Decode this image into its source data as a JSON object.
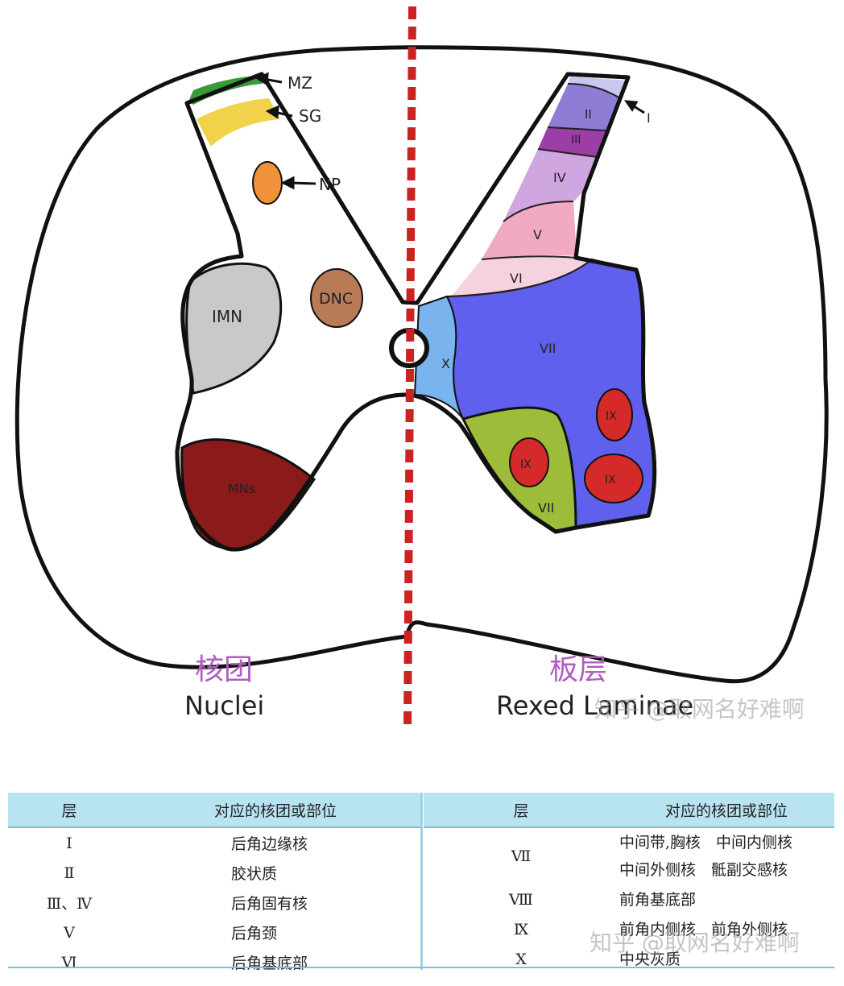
{
  "diagram": {
    "left_labels": {
      "mz": "MZ",
      "sg": "SG",
      "np": "NP",
      "imn": "IMN",
      "dnc": "DNC",
      "mns": "MNs"
    },
    "laminae": {
      "i": "I",
      "ii": "II",
      "iii": "III",
      "iv": "IV",
      "v": "V",
      "vi": "VI",
      "vii": "VII",
      "vii_b": "VII",
      "x": "X",
      "ix_a": "IX",
      "ix_b": "IX",
      "ix_c": "IX"
    },
    "nuclei_zh": "核团",
    "nuclei_en": "Nuclei",
    "laminae_zh": "板层",
    "laminae_en": "Rexed Laminae",
    "watermark": "知乎 @取网名好难啊",
    "colors": {
      "mz": "#3a9a3a",
      "sg": "#f2d24a",
      "np": "#f0923a",
      "imn": "#c9c9c9",
      "dnc": "#b97a56",
      "mns": "#8b1a1a",
      "lam_i": "#c8c8ee",
      "lam_ii": "#8f7cd4",
      "lam_iii": "#9b3fa6",
      "lam_iv": "#cfa6e0",
      "lam_v": "#f2aac4",
      "lam_vi": "#f6d2df",
      "lam_vii": "#6060ee",
      "lam_vii_b": "#9cbc3a",
      "lam_ix": "#d42a2a",
      "lam_x": "#7ab4ee",
      "midline": "#cc2222"
    }
  },
  "table_left": {
    "headers": [
      "层",
      "对应的核团或部位"
    ],
    "rows": [
      [
        "Ⅰ",
        "后角边缘核"
      ],
      [
        "Ⅱ",
        "胶状质"
      ],
      [
        "Ⅲ、Ⅳ",
        "后角固有核"
      ],
      [
        "Ⅴ",
        "后角颈"
      ],
      [
        "Ⅵ",
        "后角基底部"
      ]
    ]
  },
  "table_right": {
    "headers": [
      "层",
      "对应的核团或部位"
    ],
    "rows": [
      {
        "layer": "Ⅶ",
        "lines": [
          "中间带,胸核　中间内侧核",
          "中间外侧核　骶副交感核"
        ]
      },
      {
        "layer": "Ⅷ",
        "lines": [
          "前角基底部"
        ]
      },
      {
        "layer": "Ⅸ",
        "lines": [
          "前角内侧核　前角外侧核"
        ]
      },
      {
        "layer": "Ⅹ",
        "lines": [
          "中央灰质"
        ]
      }
    ]
  }
}
